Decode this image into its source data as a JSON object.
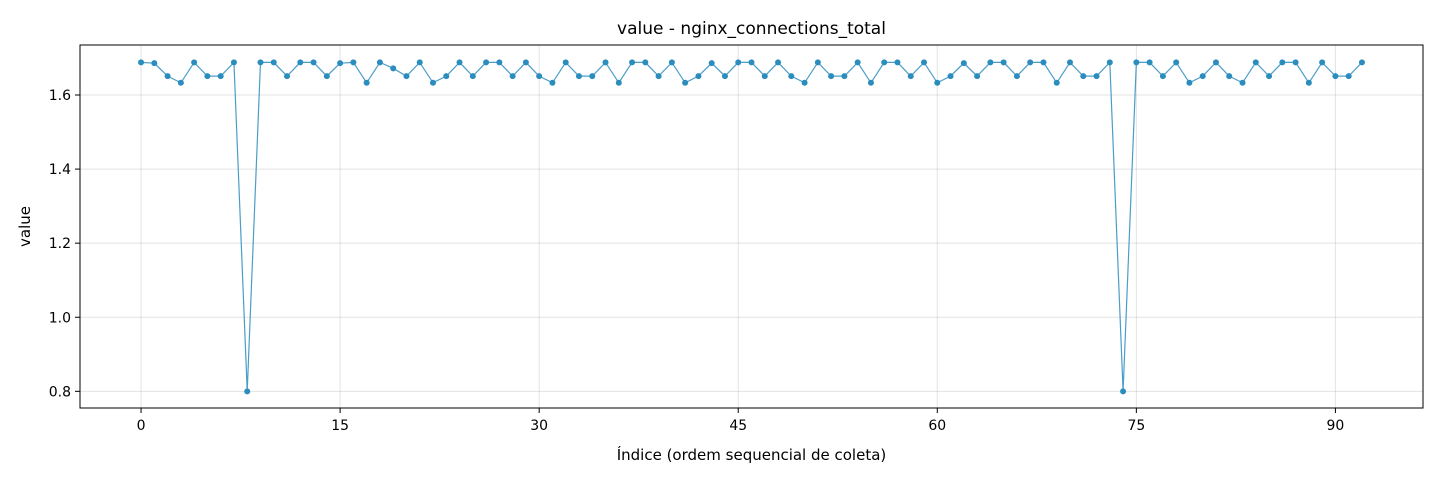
{
  "chart_data": {
    "type": "line",
    "title": "value - nginx_connections_total",
    "xlabel": "Índice (ordem sequencial de coleta)",
    "ylabel": "value",
    "xlim": [
      -4.6,
      96.6
    ],
    "ylim": [
      0.755,
      1.735
    ],
    "xticks": [
      0,
      15,
      30,
      45,
      60,
      75,
      90
    ],
    "yticks": [
      0.8,
      1.0,
      1.2,
      1.4,
      1.6
    ],
    "ytick_labels": [
      "0.8",
      "1.0",
      "1.2",
      "1.4",
      "1.6"
    ],
    "grid": true,
    "series": [
      {
        "color": "#2b8cbe",
        "marker": "circle",
        "x": [
          0,
          1,
          2,
          3,
          4,
          5,
          6,
          7,
          8,
          9,
          10,
          11,
          12,
          13,
          14,
          15,
          16,
          17,
          18,
          19,
          20,
          21,
          22,
          23,
          24,
          25,
          26,
          27,
          28,
          29,
          30,
          31,
          32,
          33,
          34,
          35,
          36,
          37,
          38,
          39,
          40,
          41,
          42,
          43,
          44,
          45,
          46,
          47,
          48,
          49,
          50,
          51,
          52,
          53,
          54,
          55,
          56,
          57,
          58,
          59,
          60,
          61,
          62,
          63,
          64,
          65,
          66,
          67,
          68,
          69,
          70,
          71,
          72,
          73,
          74,
          75,
          76,
          77,
          78,
          79,
          80,
          81,
          82,
          83,
          84,
          85,
          86,
          87,
          88,
          89,
          90,
          91,
          92
        ],
        "y": [
          1.688,
          1.686,
          1.651,
          1.633,
          1.688,
          1.651,
          1.651,
          1.688,
          0.8,
          1.688,
          1.688,
          1.651,
          1.688,
          1.688,
          1.651,
          1.686,
          1.688,
          1.633,
          1.688,
          1.672,
          1.651,
          1.688,
          1.633,
          1.651,
          1.688,
          1.651,
          1.688,
          1.688,
          1.651,
          1.688,
          1.651,
          1.633,
          1.688,
          1.651,
          1.651,
          1.688,
          1.633,
          1.688,
          1.688,
          1.651,
          1.688,
          1.633,
          1.651,
          1.686,
          1.651,
          1.688,
          1.688,
          1.651,
          1.688,
          1.651,
          1.633,
          1.688,
          1.651,
          1.651,
          1.688,
          1.633,
          1.688,
          1.688,
          1.651,
          1.688,
          1.633,
          1.651,
          1.686,
          1.651,
          1.688,
          1.688,
          1.651,
          1.688,
          1.688,
          1.633,
          1.688,
          1.651,
          1.651,
          1.688,
          0.8,
          1.688,
          1.688,
          1.651,
          1.688,
          1.633,
          1.651,
          1.688,
          1.651,
          1.633,
          1.688,
          1.651,
          1.688,
          1.688,
          1.633,
          1.688,
          1.651,
          1.651,
          1.688
        ]
      }
    ]
  }
}
